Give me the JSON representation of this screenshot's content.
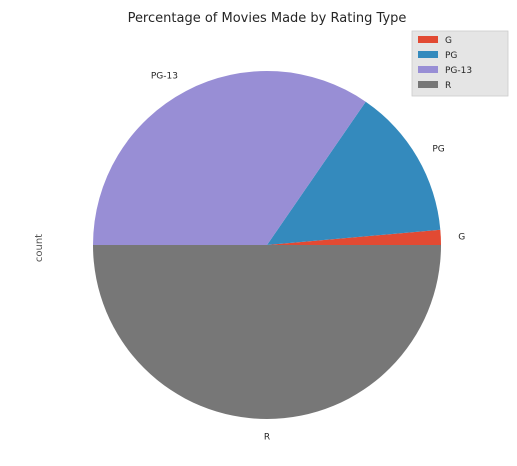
{
  "chart_data": {
    "type": "pie",
    "title": "Percentage of Movies Made by Rating Type",
    "ylabel": "count",
    "categories": [
      "G",
      "PG",
      "PG-13",
      "R"
    ],
    "values": [
      1.4,
      14.0,
      34.6,
      50.0
    ],
    "colors": [
      "#E24A33",
      "#348ABD",
      "#988ED5",
      "#777777"
    ],
    "start_angle_deg": 0,
    "direction": "counterclockwise",
    "legend": {
      "position": "top-right",
      "entries": [
        "G",
        "PG",
        "PG-13",
        "R"
      ]
    }
  }
}
